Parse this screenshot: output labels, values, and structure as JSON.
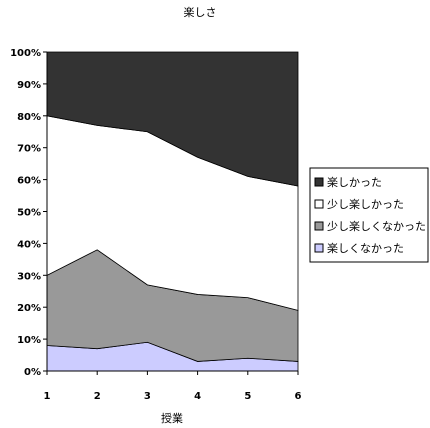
{
  "chart_data": {
    "type": "area",
    "stacked": "percent",
    "title": "楽しさ",
    "xlabel": "授業",
    "ylabel": "",
    "x": [
      1,
      2,
      3,
      4,
      5,
      6
    ],
    "ylim": [
      0,
      100
    ],
    "yticks": [
      "0%",
      "10%",
      "20%",
      "30%",
      "40%",
      "50%",
      "60%",
      "70%",
      "80%",
      "90%",
      "100%"
    ],
    "grid": false,
    "legend_position": "right",
    "series": [
      {
        "name": "楽しくなかった",
        "color": "#ccccff",
        "values": [
          8,
          7,
          9,
          3,
          4,
          3
        ]
      },
      {
        "name": "少し楽しくなかった",
        "color": "#999999",
        "values": [
          22,
          31,
          18,
          21,
          19,
          16
        ]
      },
      {
        "name": "少し楽しかった",
        "color": "#ffffff",
        "values": [
          50,
          39,
          48,
          43,
          38,
          39
        ]
      },
      {
        "name": "楽しかった",
        "color": "#333333",
        "values": [
          20,
          23,
          25,
          33,
          39,
          42
        ]
      }
    ]
  }
}
